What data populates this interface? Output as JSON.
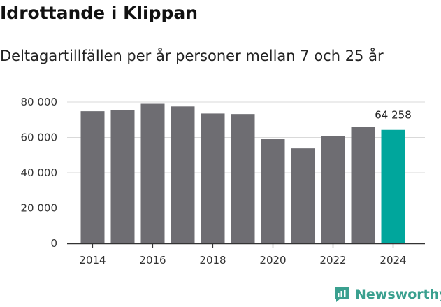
{
  "header": {
    "title": "Idrottande i Klippan",
    "subtitle": "Deltagartillfällen per år personer mellan 7 och 25 år"
  },
  "colors": {
    "bar": "#6e6d72",
    "highlight": "#00a69c",
    "grid": "#d9d9d9",
    "axis": "#333333",
    "brand": "#3aa08f"
  },
  "brand": {
    "name": "Newsworthy"
  },
  "chart_data": {
    "type": "bar",
    "title": "Idrottande i Klippan",
    "subtitle": "Deltagartillfällen per år personer mellan 7 och 25 år",
    "xlabel": "",
    "ylabel": "",
    "categories": [
      "2014",
      "2015",
      "2016",
      "2017",
      "2018",
      "2019",
      "2020",
      "2021",
      "2022",
      "2023",
      "2024"
    ],
    "values": [
      74800,
      75600,
      79000,
      77500,
      73500,
      73200,
      59000,
      53800,
      60800,
      66000,
      64258
    ],
    "highlight_index": 10,
    "data_label": {
      "index": 10,
      "text": "64 258"
    },
    "ylim": [
      0,
      80000
    ],
    "yticks": [
      0,
      20000,
      40000,
      60000,
      80000
    ],
    "ytick_labels": [
      "0",
      "20 000",
      "40 000",
      "60 000",
      "80 000"
    ],
    "xtick_labels": [
      "2014",
      "2016",
      "2018",
      "2020",
      "2022",
      "2024"
    ],
    "grid": true,
    "legend": "none"
  }
}
